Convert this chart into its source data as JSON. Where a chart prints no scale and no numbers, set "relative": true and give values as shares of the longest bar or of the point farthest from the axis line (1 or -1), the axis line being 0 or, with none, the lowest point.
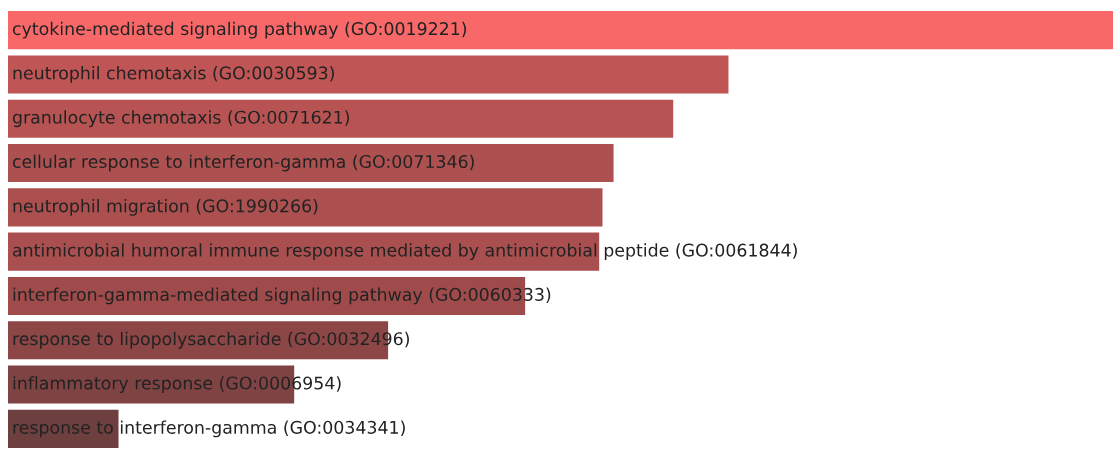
{
  "chart_data": {
    "type": "bar",
    "orientation": "horizontal",
    "relative": true,
    "categories": [
      "cytokine-mediated signaling pathway (GO:0019221)",
      "neutrophil chemotaxis (GO:0030593)",
      "granulocyte chemotaxis (GO:0071621)",
      "cellular response to interferon-gamma (GO:0071346)",
      "neutrophil migration (GO:1990266)",
      "antimicrobial humoral immune response mediated by antimicrobial peptide (GO:0061844)",
      "interferon-gamma-mediated signaling pathway (GO:0060333)",
      "response to lipopolysaccharide (GO:0032496)",
      "inflammatory response (GO:0006954)",
      "response to interferon-gamma (GO:0034341)"
    ],
    "values": [
      1,
      0.652,
      0.602,
      0.548,
      0.538,
      0.535,
      0.468,
      0.344,
      0.259,
      0.1
    ],
    "colors": [
      "#f86868",
      "#bf5555",
      "#b85353",
      "#ad5050",
      "#ab4f4f",
      "#aa4f4f",
      "#9f4b4b",
      "#8c4646",
      "#7f4343",
      "#6e3f3f"
    ],
    "legend": false
  }
}
